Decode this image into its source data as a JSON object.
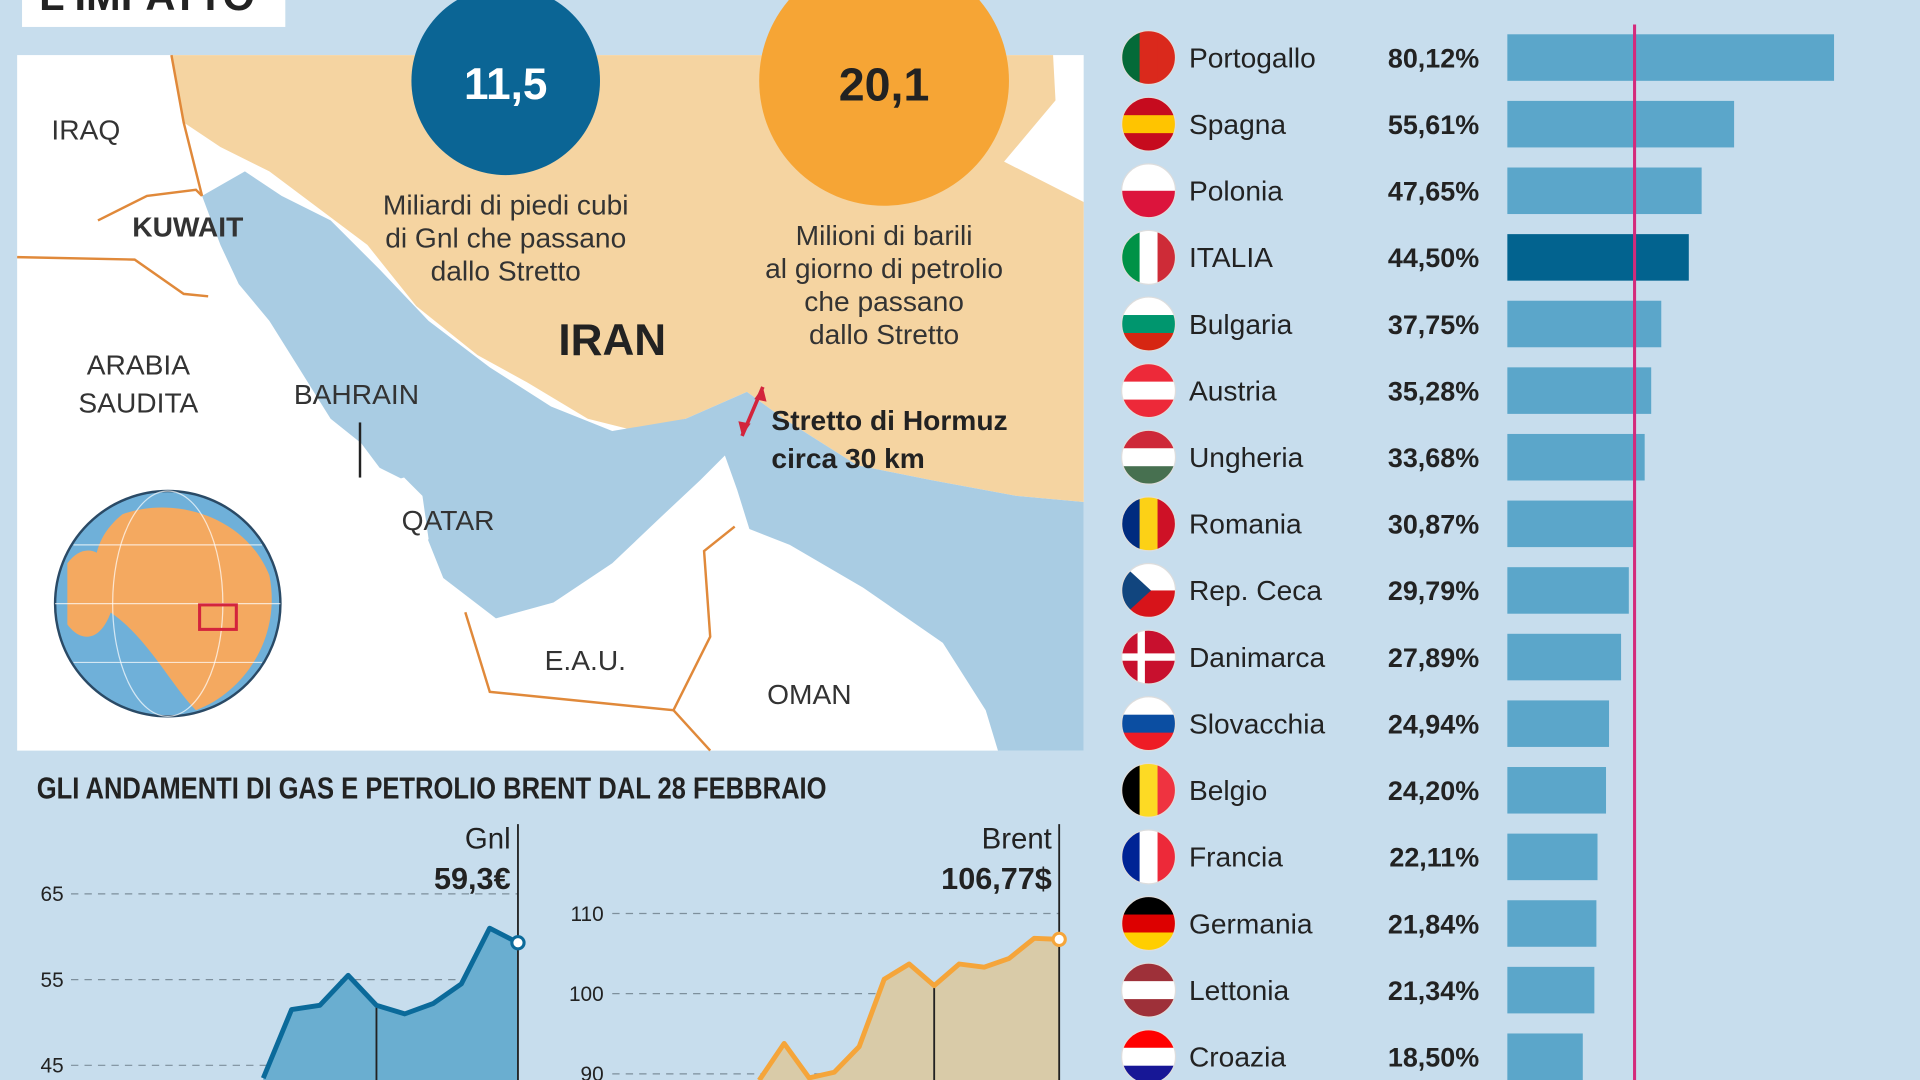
{
  "header": {
    "title": "L'IMPATTO"
  },
  "map": {
    "iraq": "IRAQ",
    "kuwait": "KUWAIT",
    "saudi": [
      "ARABIA",
      "SAUDITA"
    ],
    "bahrain": "BAHRAIN",
    "qatar": "QATAR",
    "iran": "IRAN",
    "uae": "E.A.U.",
    "oman": "OMAN",
    "strait": [
      "Stretto di Hormuz",
      "circa 30 km"
    ],
    "stats": [
      {
        "value": "11,5",
        "caption": [
          "Miliardi di piedi cubi",
          "di Gnl che passano",
          "dallo Stretto"
        ]
      },
      {
        "value": "20,1",
        "caption": [
          "Milioni di barili",
          "al giorno di petrolio",
          "che passano",
          "dallo Stretto"
        ]
      }
    ]
  },
  "trends_title": "GLI ANDAMENTI DI GAS E PETROLIO BRENT DAL 28 FEBBRAIO",
  "chart_data": [
    {
      "type": "hbar",
      "categories": [
        "Portogallo",
        "Spagna",
        "Polonia",
        "ITALIA",
        "Bulgaria",
        "Austria",
        "Ungheria",
        "Romania",
        "Rep. Ceca",
        "Danimarca",
        "Slovacchia",
        "Belgio",
        "Francia",
        "Germania",
        "Lettonia",
        "Croazia"
      ],
      "values": [
        80.12,
        55.61,
        47.65,
        44.5,
        37.75,
        35.28,
        33.68,
        30.87,
        29.79,
        27.89,
        24.94,
        24.2,
        22.11,
        21.84,
        21.34,
        18.5
      ],
      "value_labels": [
        "80,12%",
        "55,61%",
        "47,65%",
        "44,50%",
        "37,75%",
        "35,28%",
        "33,68%",
        "30,87%",
        "29,79%",
        "27,89%",
        "24,94%",
        "24,20%",
        "22,11%",
        "21,84%",
        "21,34%",
        "18,50%"
      ],
      "colors": [
        "#5ba6ca",
        "#5ba6ca",
        "#5ba6ca",
        "#02638f",
        "#5ba6ca",
        "#5ba6ca",
        "#5ba6ca",
        "#5ba6ca",
        "#5ba6ca",
        "#5ba6ca",
        "#5ba6ca",
        "#5ba6ca",
        "#5ba6ca",
        "#5ba6ca",
        "#5ba6ca",
        "#5ba6ca"
      ],
      "reference_line": {
        "value": 31.2,
        "color": "#d42a7c"
      }
    },
    {
      "type": "area",
      "categories": [
        null,
        null,
        null,
        null,
        null,
        null,
        null,
        null,
        null,
        null
      ],
      "series": [
        {
          "name": "Gnl",
          "color": "#0b6a9a",
          "fill": "#6aaed0",
          "values": [
            43.5,
            51.5,
            52,
            55.5,
            52,
            51,
            52.2,
            54.5,
            61,
            59.3
          ]
        }
      ],
      "end_label": "59,3€",
      "ylim": [
        43,
        70
      ],
      "yticks": [
        45,
        55,
        65
      ],
      "grid": true
    },
    {
      "type": "area",
      "categories": [
        null,
        null,
        null,
        null,
        null,
        null,
        null,
        null,
        null,
        null,
        null,
        null,
        null
      ],
      "series": [
        {
          "name": "Brent",
          "color": "#f5a53a",
          "fill": "#d9cba8",
          "values": [
            89.2,
            93.8,
            89.5,
            90.2,
            93.4,
            101.8,
            103.7,
            101,
            103.7,
            103.3,
            104.4,
            106.9,
            106.77
          ]
        }
      ],
      "end_label": "106,77$",
      "ylim": [
        88,
        114
      ],
      "yticks": [
        90,
        100,
        110
      ],
      "grid": true
    }
  ]
}
